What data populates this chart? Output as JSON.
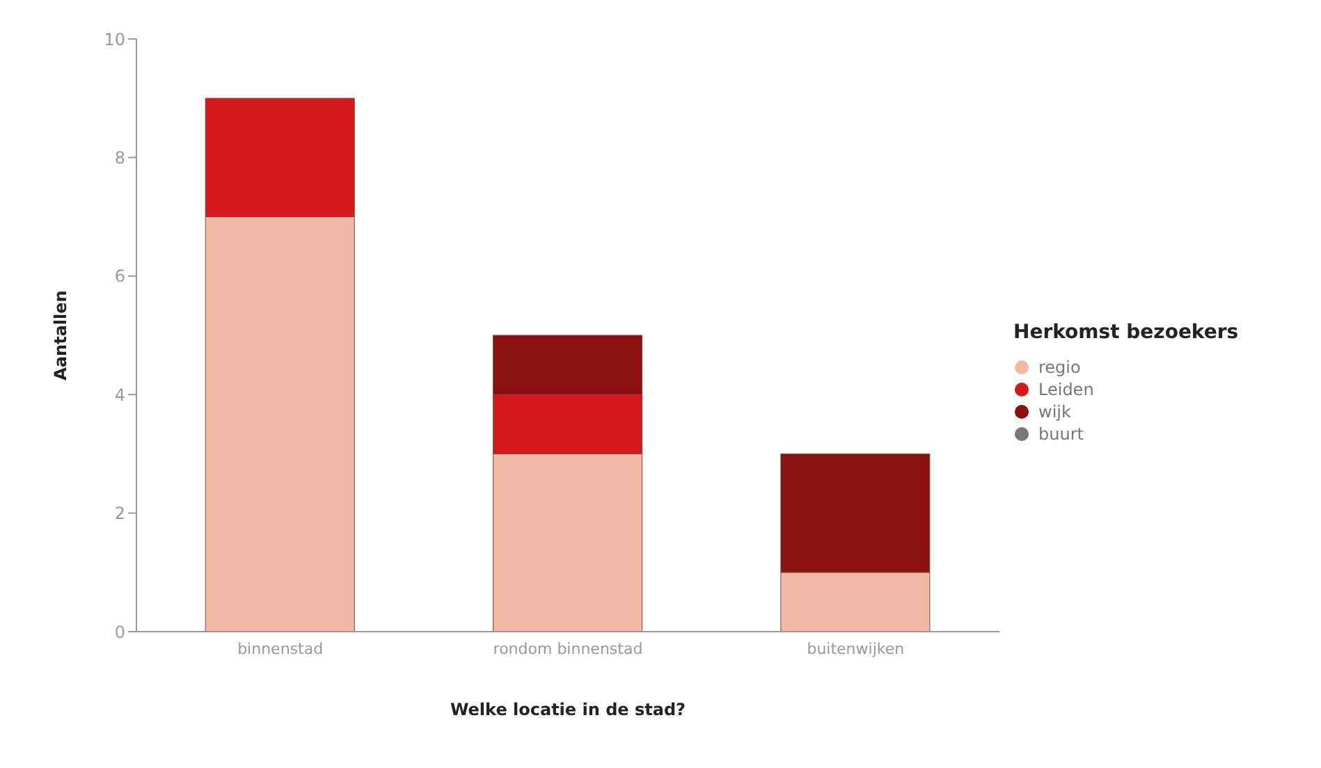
{
  "chart_data": {
    "type": "bar",
    "stacked": true,
    "xlabel": "Welke locatie in de stad?",
    "ylabel": "Aantallen",
    "legend_title": "Herkomst bezoekers",
    "categories": [
      "binnenstad",
      "rondom binnenstad",
      "buitenwijken"
    ],
    "series": [
      {
        "name": "regio",
        "color": "#f2b8a6",
        "values": [
          7,
          3,
          1
        ]
      },
      {
        "name": "Leiden",
        "color": "#d41a1f",
        "values": [
          2,
          1,
          0
        ]
      },
      {
        "name": "wijk",
        "color": "#8b1010",
        "values": [
          0,
          1,
          2
        ]
      },
      {
        "name": "buurt",
        "color": "#777777",
        "values": [
          0,
          0,
          0
        ]
      }
    ],
    "ylim": [
      0,
      10
    ],
    "yticks": [
      0,
      2,
      4,
      6,
      8,
      10
    ],
    "grid": false,
    "legend": "right",
    "marker": "circle"
  }
}
